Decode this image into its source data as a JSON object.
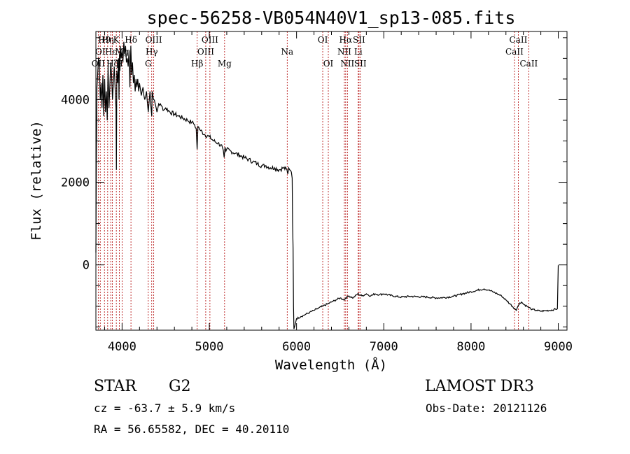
{
  "chart_data": {
    "type": "line",
    "title": "spec-56258-VB054N40V1_sp13-085.fits",
    "xlabel": "Wavelength (Å)",
    "ylabel": "Flux (relative)",
    "xlim": [
      3700,
      9100
    ],
    "ylim": [
      -1580,
      5650
    ],
    "xticks": [
      4000,
      5000,
      6000,
      7000,
      8000,
      9000
    ],
    "yticks": [
      0,
      2000,
      4000
    ],
    "series": [
      {
        "name": "spectrum",
        "x": [
          3700,
          3705,
          3712,
          3720,
          3730,
          3740,
          3750,
          3760,
          3770,
          3780,
          3790,
          3800,
          3810,
          3820,
          3830,
          3840,
          3850,
          3860,
          3870,
          3880,
          3890,
          3900,
          3910,
          3920,
          3930,
          3935,
          3940,
          3950,
          3960,
          3965,
          3970,
          3975,
          3980,
          3990,
          4000,
          4010,
          4020,
          4030,
          4040,
          4050,
          4060,
          4070,
          4080,
          4090,
          4100,
          4110,
          4120,
          4130,
          4140,
          4150,
          4160,
          4170,
          4180,
          4190,
          4200,
          4220,
          4240,
          4260,
          4280,
          4300,
          4320,
          4340,
          4345,
          4360,
          4380,
          4400,
          4420,
          4450,
          4480,
          4500,
          4550,
          4600,
          4650,
          4700,
          4750,
          4800,
          4830,
          4850,
          4860,
          4862,
          4870,
          4900,
          4950,
          5000,
          5050,
          5100,
          5150,
          5170,
          5180,
          5190,
          5200,
          5250,
          5300,
          5350,
          5400,
          5450,
          5500,
          5550,
          5600,
          5650,
          5700,
          5750,
          5800,
          5850,
          5890,
          5900,
          5910,
          5920,
          5940,
          5950,
          5955,
          5960,
          5965,
          5970,
          6000,
          6050,
          6100,
          6150,
          6200,
          6250,
          6300,
          6350,
          6400,
          6450,
          6500,
          6550,
          6563,
          6600,
          6650,
          6700,
          6750,
          6800,
          6850,
          6900,
          6950,
          7000,
          7100,
          7200,
          7300,
          7400,
          7500,
          7600,
          7700,
          7800,
          7900,
          8000,
          8100,
          8150,
          8200,
          8250,
          8300,
          8350,
          8400,
          8450,
          8498,
          8520,
          8542,
          8560,
          8580,
          8600,
          8640,
          8662,
          8700,
          8750,
          8800,
          8850,
          8900,
          8950,
          8990,
          9000,
          9005
        ],
        "values": [
          300,
          2500,
          4300,
          4600,
          5000,
          4800,
          4000,
          4400,
          3800,
          4600,
          3600,
          4500,
          3700,
          4200,
          3500,
          4800,
          3800,
          4300,
          4900,
          4600,
          4000,
          4400,
          4800,
          4300,
          3800,
          2300,
          4700,
          4400,
          5000,
          4000,
          5100,
          4700,
          5300,
          5000,
          5200,
          4900,
          5400,
          5100,
          5300,
          4900,
          5000,
          4800,
          5200,
          4300,
          5300,
          4600,
          4900,
          4400,
          4600,
          4200,
          4500,
          4300,
          4500,
          4200,
          4400,
          4100,
          4300,
          4000,
          4200,
          3700,
          4200,
          3600,
          4200,
          4000,
          3900,
          3700,
          3900,
          3850,
          3750,
          3800,
          3700,
          3650,
          3600,
          3550,
          3500,
          3450,
          3400,
          3300,
          2800,
          2900,
          3350,
          3250,
          3150,
          3100,
          3000,
          2950,
          2850,
          2600,
          2850,
          2750,
          2800,
          2750,
          2700,
          2650,
          2600,
          2550,
          2500,
          2450,
          2400,
          2400,
          2350,
          2350,
          2300,
          2350,
          2300,
          2200,
          2350,
          2300,
          2250,
          2100,
          1000,
          400,
          -1000,
          -1550,
          -1300,
          -1250,
          -1200,
          -1150,
          -1100,
          -1050,
          -1000,
          -950,
          -900,
          -850,
          -800,
          -850,
          -800,
          -750,
          -800,
          -700,
          -750,
          -700,
          -750,
          -700,
          -720,
          -700,
          -750,
          -780,
          -760,
          -770,
          -780,
          -800,
          -790,
          -760,
          -700,
          -650,
          -600,
          -580,
          -610,
          -650,
          -700,
          -750,
          -850,
          -950,
          -1050,
          -1100,
          -980,
          -920,
          -900,
          -950,
          -1000,
          -1030,
          -1080,
          -1100,
          -1120,
          -1110,
          -1100,
          -1080,
          -1060,
          -20,
          -20
        ]
      }
    ],
    "line_markers": [
      {
        "wavelength": 3727,
        "label": "OII",
        "row": 3
      },
      {
        "wavelength": 3750,
        "label": "OI",
        "row": 2
      },
      {
        "wavelength": 3798,
        "label": "H9",
        "row": 1
      },
      {
        "wavelength": 3835,
        "label": "Hη",
        "row": 1
      },
      {
        "wavelength": 3870,
        "label": "Hε",
        "row": 2
      },
      {
        "wavelength": 3889,
        "label": "Hζ",
        "row": 3
      },
      {
        "wavelength": 3934,
        "label": "K",
        "row": 1
      },
      {
        "wavelength": 3969,
        "label": "H",
        "row": 3
      },
      {
        "wavelength": 4000,
        "label": "Mg",
        "row": 2
      },
      {
        "wavelength": 4102,
        "label": "Hδ",
        "row": 1
      },
      {
        "wavelength": 4300,
        "label": "G",
        "row": 3
      },
      {
        "wavelength": 4340,
        "label": "Hγ",
        "row": 2
      },
      {
        "wavelength": 4363,
        "label": "OIII",
        "row": 1
      },
      {
        "wavelength": 4861,
        "label": "Hβ",
        "row": 3
      },
      {
        "wavelength": 4959,
        "label": "OIII",
        "row": 2
      },
      {
        "wavelength": 5007,
        "label": "OIII",
        "row": 1
      },
      {
        "wavelength": 5175,
        "label": "Mg",
        "row": 3
      },
      {
        "wavelength": 5893,
        "label": "Na",
        "row": 2
      },
      {
        "wavelength": 6300,
        "label": "OI",
        "row": 1
      },
      {
        "wavelength": 6364,
        "label": "OI",
        "row": 3
      },
      {
        "wavelength": 6548,
        "label": "NII",
        "row": 2
      },
      {
        "wavelength": 6563,
        "label": "Hα",
        "row": 1
      },
      {
        "wavelength": 6583,
        "label": "NII",
        "row": 3
      },
      {
        "wavelength": 6707,
        "label": "Li",
        "row": 2
      },
      {
        "wavelength": 6716,
        "label": "SII",
        "row": 1
      },
      {
        "wavelength": 6731,
        "label": "SII",
        "row": 3
      },
      {
        "wavelength": 8498,
        "label": "CaII",
        "row": 2
      },
      {
        "wavelength": 8542,
        "label": "CaII",
        "row": 1
      },
      {
        "wavelength": 8662,
        "label": "CaII",
        "row": 3
      }
    ]
  },
  "info": {
    "object_class": "STAR",
    "subclass": "G2",
    "survey": "LAMOST DR3",
    "redshift": "cz = -63.7 ± 5.9 km/s",
    "obs_date": "Obs-Date: 20121126",
    "coords": "RA =  56.65582, DEC =  40.20110"
  },
  "colors": {
    "marker": "#b00000",
    "spectrum": "#000000",
    "axis": "#000000"
  }
}
